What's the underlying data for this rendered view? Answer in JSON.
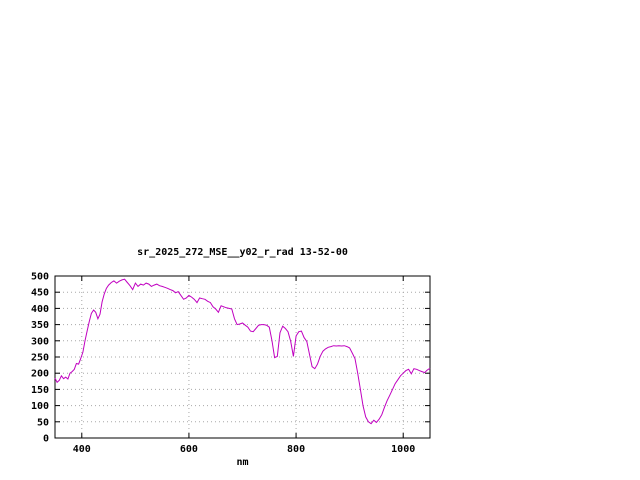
{
  "window": {
    "background": "#ffffff"
  },
  "chart_data": {
    "type": "line",
    "title": "sr_2025_272_MSE__y02_r_rad 13-52-00",
    "xlabel": "nm",
    "ylabel": "",
    "xlim": [
      350,
      1050
    ],
    "ylim": [
      0,
      500
    ],
    "x_ticks": [
      400,
      600,
      800,
      1000
    ],
    "y_ticks": [
      0,
      50,
      100,
      150,
      200,
      250,
      300,
      350,
      400,
      450,
      500
    ],
    "grid": true,
    "legend_position": "none",
    "line_color": "#c000c0",
    "border_color": "#000000",
    "grid_color": "#a8a8a8",
    "series": [
      {
        "name": "spectral_radiance",
        "points": [
          [
            350,
            185
          ],
          [
            354,
            172
          ],
          [
            358,
            178
          ],
          [
            362,
            192
          ],
          [
            366,
            183
          ],
          [
            370,
            188
          ],
          [
            374,
            182
          ],
          [
            378,
            200
          ],
          [
            382,
            205
          ],
          [
            386,
            212
          ],
          [
            390,
            230
          ],
          [
            394,
            228
          ],
          [
            398,
            245
          ],
          [
            402,
            265
          ],
          [
            406,
            300
          ],
          [
            410,
            330
          ],
          [
            414,
            360
          ],
          [
            418,
            385
          ],
          [
            422,
            395
          ],
          [
            426,
            388
          ],
          [
            430,
            368
          ],
          [
            434,
            382
          ],
          [
            438,
            420
          ],
          [
            442,
            445
          ],
          [
            446,
            462
          ],
          [
            450,
            472
          ],
          [
            455,
            480
          ],
          [
            460,
            485
          ],
          [
            465,
            478
          ],
          [
            470,
            484
          ],
          [
            475,
            488
          ],
          [
            480,
            490
          ],
          [
            485,
            480
          ],
          [
            490,
            470
          ],
          [
            495,
            458
          ],
          [
            500,
            478
          ],
          [
            505,
            468
          ],
          [
            510,
            475
          ],
          [
            515,
            472
          ],
          [
            520,
            478
          ],
          [
            525,
            475
          ],
          [
            530,
            468
          ],
          [
            535,
            472
          ],
          [
            540,
            475
          ],
          [
            545,
            470
          ],
          [
            550,
            468
          ],
          [
            555,
            465
          ],
          [
            560,
            462
          ],
          [
            565,
            458
          ],
          [
            570,
            455
          ],
          [
            575,
            448
          ],
          [
            580,
            452
          ],
          [
            585,
            440
          ],
          [
            590,
            428
          ],
          [
            595,
            432
          ],
          [
            600,
            440
          ],
          [
            605,
            435
          ],
          [
            610,
            428
          ],
          [
            615,
            418
          ],
          [
            620,
            432
          ],
          [
            625,
            430
          ],
          [
            630,
            428
          ],
          [
            635,
            422
          ],
          [
            640,
            418
          ],
          [
            645,
            405
          ],
          [
            650,
            398
          ],
          [
            655,
            388
          ],
          [
            660,
            408
          ],
          [
            665,
            405
          ],
          [
            670,
            402
          ],
          [
            675,
            400
          ],
          [
            680,
            398
          ],
          [
            685,
            368
          ],
          [
            690,
            350
          ],
          [
            695,
            352
          ],
          [
            700,
            355
          ],
          [
            705,
            348
          ],
          [
            710,
            342
          ],
          [
            715,
            330
          ],
          [
            720,
            328
          ],
          [
            725,
            338
          ],
          [
            730,
            348
          ],
          [
            735,
            350
          ],
          [
            740,
            350
          ],
          [
            745,
            348
          ],
          [
            750,
            342
          ],
          [
            755,
            300
          ],
          [
            760,
            248
          ],
          [
            765,
            252
          ],
          [
            770,
            325
          ],
          [
            775,
            345
          ],
          [
            780,
            338
          ],
          [
            785,
            328
          ],
          [
            790,
            298
          ],
          [
            795,
            252
          ],
          [
            800,
            315
          ],
          [
            805,
            328
          ],
          [
            810,
            330
          ],
          [
            815,
            310
          ],
          [
            820,
            298
          ],
          [
            825,
            258
          ],
          [
            830,
            220
          ],
          [
            835,
            214
          ],
          [
            840,
            228
          ],
          [
            845,
            252
          ],
          [
            850,
            268
          ],
          [
            855,
            275
          ],
          [
            860,
            280
          ],
          [
            865,
            282
          ],
          [
            870,
            285
          ],
          [
            875,
            284
          ],
          [
            880,
            285
          ],
          [
            885,
            284
          ],
          [
            890,
            285
          ],
          [
            895,
            282
          ],
          [
            900,
            278
          ],
          [
            905,
            262
          ],
          [
            910,
            245
          ],
          [
            915,
            200
          ],
          [
            920,
            150
          ],
          [
            925,
            100
          ],
          [
            930,
            65
          ],
          [
            935,
            50
          ],
          [
            940,
            44
          ],
          [
            945,
            55
          ],
          [
            950,
            48
          ],
          [
            955,
            58
          ],
          [
            960,
            72
          ],
          [
            965,
            95
          ],
          [
            970,
            115
          ],
          [
            975,
            132
          ],
          [
            980,
            150
          ],
          [
            985,
            168
          ],
          [
            990,
            180
          ],
          [
            995,
            192
          ],
          [
            1000,
            200
          ],
          [
            1005,
            208
          ],
          [
            1010,
            212
          ],
          [
            1015,
            198
          ],
          [
            1020,
            214
          ],
          [
            1025,
            212
          ],
          [
            1030,
            208
          ],
          [
            1035,
            205
          ],
          [
            1040,
            202
          ],
          [
            1045,
            210
          ],
          [
            1050,
            215
          ]
        ]
      }
    ]
  }
}
